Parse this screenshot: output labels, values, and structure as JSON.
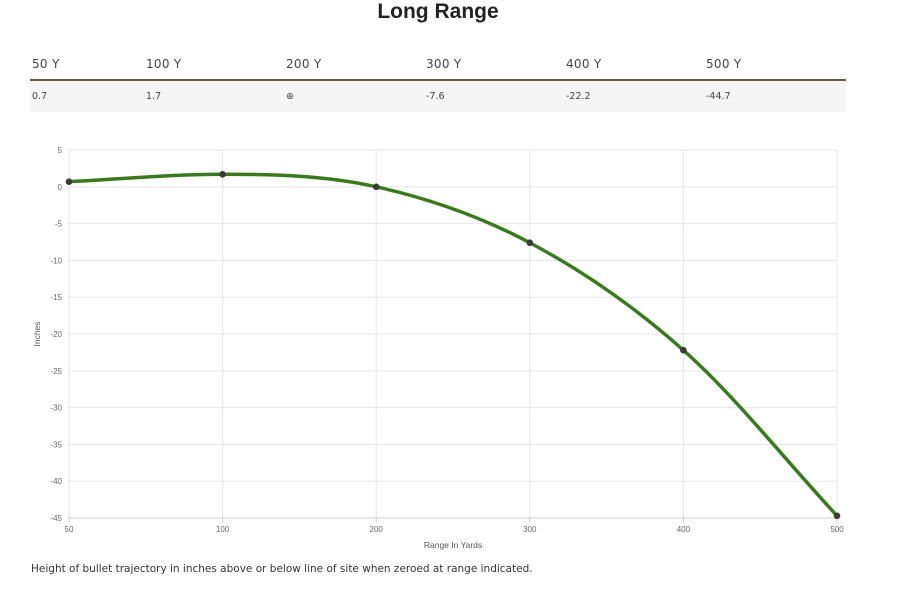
{
  "title": "Long Range",
  "table": {
    "headers": [
      "50 Y",
      "100 Y",
      "200 Y",
      "300 Y",
      "400 Y",
      "500 Y"
    ],
    "values": [
      "0.7",
      "1.7",
      "⊕",
      "-7.6",
      "-22.2",
      "-44.7"
    ]
  },
  "caption": "Height of bullet trajectory in inches above or below line of site when zeroed at range indicated.",
  "colors": {
    "line": "#3a7a1f",
    "point": "#3b3b3b",
    "grid": "#e6e6e6",
    "table_rule": "#6b5a3c"
  },
  "chart_data": {
    "type": "line",
    "x": [
      50,
      100,
      200,
      300,
      400,
      500
    ],
    "x_tick_labels": [
      "50",
      "100",
      "200",
      "300",
      "400",
      "500"
    ],
    "series": [
      {
        "values": [
          0.7,
          1.7,
          0,
          -7.6,
          -22.2,
          -44.7
        ]
      }
    ],
    "y_ticks": [
      5,
      0,
      -5,
      -10,
      -15,
      -20,
      -25,
      -30,
      -35,
      -40,
      -45
    ],
    "ylim": [
      -45,
      5
    ],
    "xlabel": "Range In Yards",
    "ylabel": "Inches",
    "grid": true
  }
}
